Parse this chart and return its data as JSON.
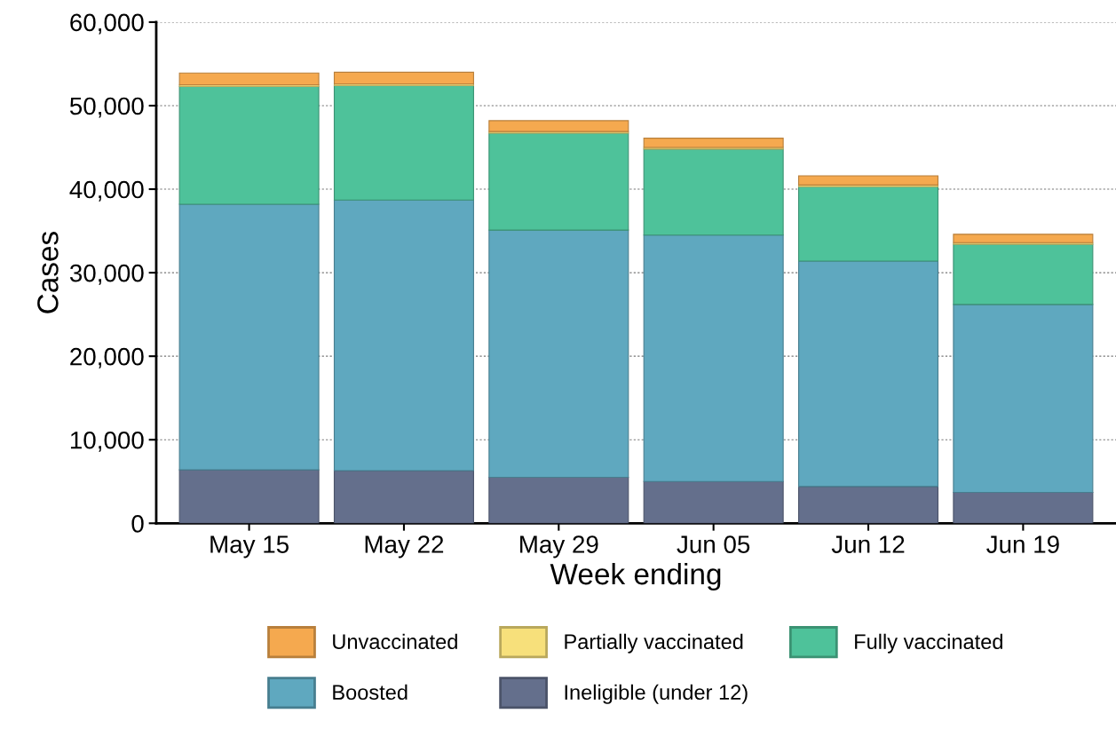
{
  "chart_data": {
    "type": "bar",
    "stacked": true,
    "xlabel": "Week ending",
    "ylabel": "Cases",
    "categories": [
      "May 15",
      "May 22",
      "May 29",
      "Jun 05",
      "Jun 12",
      "Jun 19"
    ],
    "series": [
      {
        "name": "Ineligible (under 12)",
        "color": "#646f8c",
        "values": [
          6400,
          6300,
          5500,
          5000,
          4400,
          3700
        ]
      },
      {
        "name": "Boosted",
        "color": "#5fa8bf",
        "values": [
          31800,
          32400,
          29600,
          29500,
          27000,
          22500
        ]
      },
      {
        "name": "Fully vaccinated",
        "color": "#4ec29a",
        "values": [
          14100,
          13700,
          11600,
          10300,
          8900,
          7200
        ]
      },
      {
        "name": "Partially vaccinated",
        "color": "#f7e07b",
        "values": [
          200,
          200,
          200,
          200,
          200,
          200
        ]
      },
      {
        "name": "Unvaccinated",
        "color": "#f5a94f",
        "values": [
          1400,
          1400,
          1300,
          1100,
          1100,
          1000
        ]
      }
    ],
    "ylim": [
      0,
      60000
    ],
    "yticks": [
      {
        "value": 0,
        "label": "0"
      },
      {
        "value": 10000,
        "label": "10,000"
      },
      {
        "value": 20000,
        "label": "20,000"
      },
      {
        "value": 30000,
        "label": "30,000"
      },
      {
        "value": 40000,
        "label": "40,000"
      },
      {
        "value": 50000,
        "label": "50,000"
      },
      {
        "value": 60000,
        "label": "60,000"
      }
    ],
    "grid": "y",
    "legend": "bottom"
  }
}
